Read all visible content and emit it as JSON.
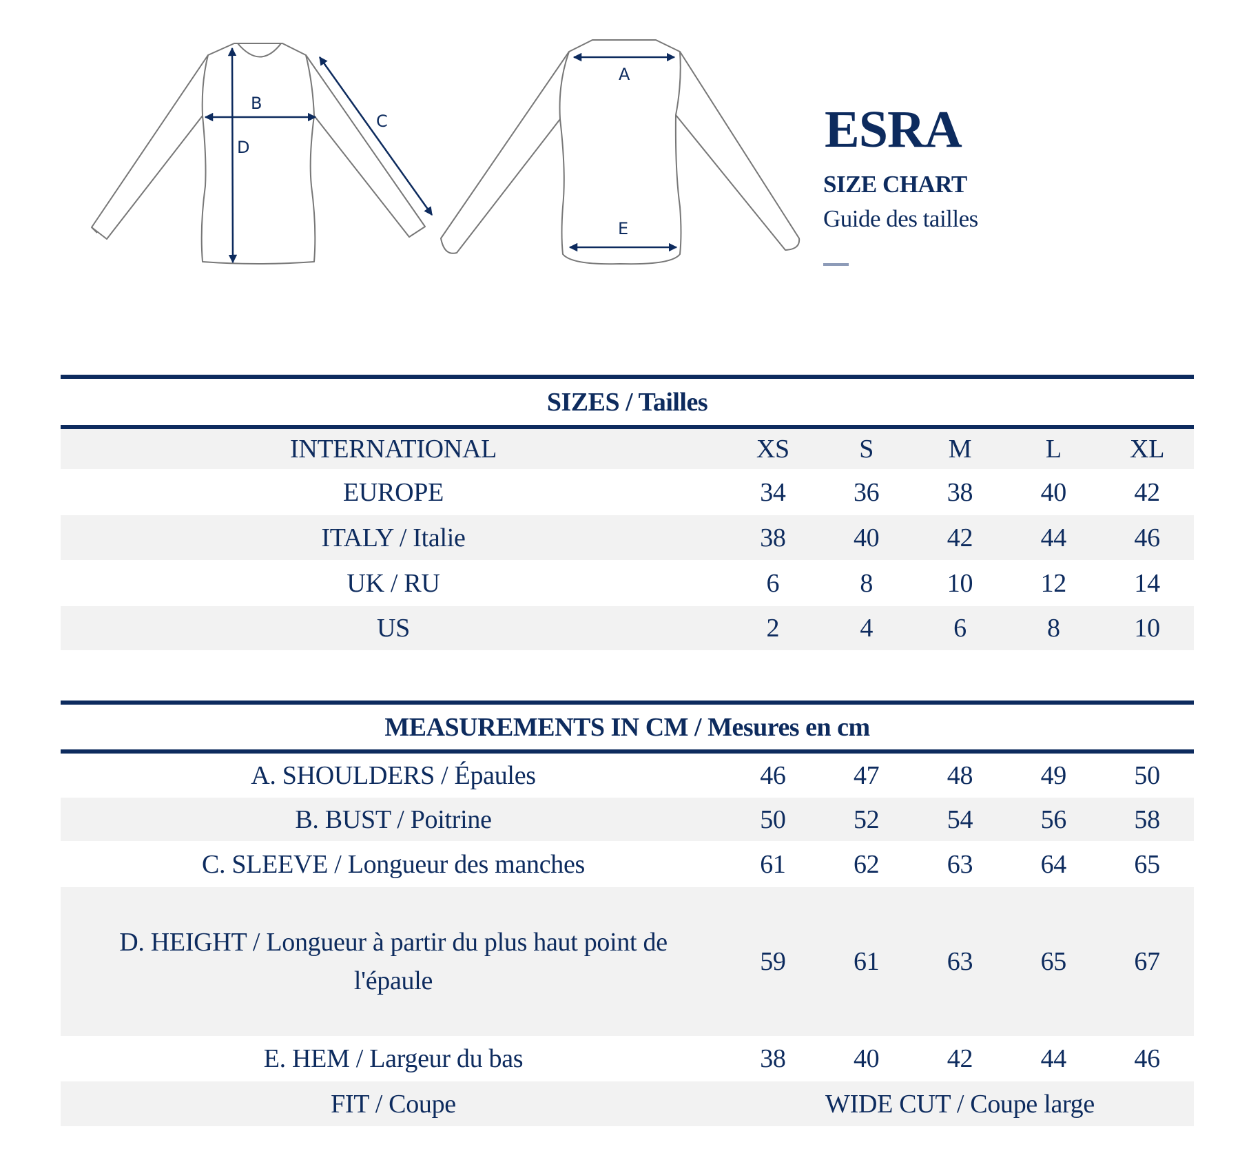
{
  "header": {
    "brand": "ESRA",
    "subtitle": "SIZE CHART",
    "subtitle_fr": "Guide des tailles"
  },
  "diagram": {
    "front_labels": [
      "B",
      "C",
      "D"
    ],
    "back_labels": [
      "A",
      "E"
    ]
  },
  "sizes_table": {
    "title": "SIZES / Tailles",
    "rows": [
      {
        "label": "INTERNATIONAL",
        "values": [
          "XS",
          "S",
          "M",
          "L",
          "XL"
        ]
      },
      {
        "label": "EUROPE",
        "values": [
          "34",
          "36",
          "38",
          "40",
          "42"
        ]
      },
      {
        "label": "ITALY / Italie",
        "values": [
          "38",
          "40",
          "42",
          "44",
          "46"
        ]
      },
      {
        "label": "UK / RU",
        "values": [
          "6",
          "8",
          "10",
          "12",
          "14"
        ]
      },
      {
        "label": "US",
        "values": [
          "2",
          "4",
          "6",
          "8",
          "10"
        ]
      }
    ]
  },
  "measurements_table": {
    "title": "MEASUREMENTS IN CM / Mesures en cm",
    "rows": [
      {
        "label": "A. SHOULDERS / Épaules",
        "values": [
          "46",
          "47",
          "48",
          "49",
          "50"
        ]
      },
      {
        "label": "B. BUST / Poitrine",
        "values": [
          "50",
          "52",
          "54",
          "56",
          "58"
        ]
      },
      {
        "label": "C. SLEEVE / Longueur des manches",
        "values": [
          "61",
          "62",
          "63",
          "64",
          "65"
        ]
      },
      {
        "label": "D. HEIGHT / Longueur à partir du plus haut point de l'épaule",
        "values": [
          "59",
          "61",
          "63",
          "65",
          "67"
        ]
      },
      {
        "label": "E. HEM / Largeur du bas",
        "values": [
          "38",
          "40",
          "42",
          "44",
          "46"
        ]
      }
    ],
    "fit": {
      "label": "FIT / Coupe",
      "value": "WIDE CUT / Coupe large"
    }
  },
  "colors": {
    "navy": "#0d2b5e",
    "row_gray": "#f2f2f2",
    "outline_gray": "#777777"
  }
}
